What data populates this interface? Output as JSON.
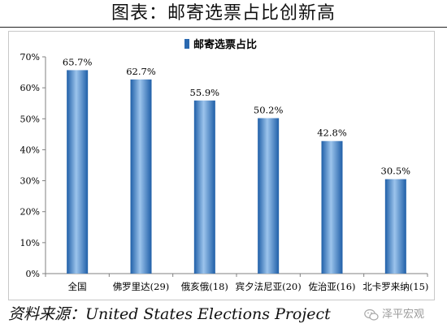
{
  "title": "图表：邮寄选票占比创新高",
  "source": "资料来源：United States Elections Project",
  "watermark": {
    "text": "泽平宏观",
    "icon": "wechat-icon"
  },
  "colors": {
    "bar_dark": "#1f5fa8",
    "bar_light": "#9cc4ec",
    "axis": "#808080",
    "legend_swatch": "#2a69b0"
  },
  "chart_data": {
    "type": "bar",
    "categories": [
      "全国",
      "佛罗里达(29)",
      "俄亥俄(18)",
      "宾夕法尼亚(20)",
      "佐治亚(16)",
      "北卡罗来纳(15)"
    ],
    "series": [
      {
        "name": "邮寄选票占比",
        "values": [
          65.7,
          62.7,
          55.9,
          50.2,
          42.8,
          30.5
        ]
      }
    ],
    "data_labels": [
      "65.7%",
      "62.7%",
      "55.9%",
      "50.2%",
      "42.8%",
      "30.5%"
    ],
    "yticks": [
      "0%",
      "10%",
      "20%",
      "30%",
      "40%",
      "50%",
      "60%",
      "70%"
    ],
    "ylim": [
      0,
      70
    ],
    "legend_position": "top-center",
    "grid": false,
    "title": "",
    "xlabel": "",
    "ylabel": ""
  }
}
